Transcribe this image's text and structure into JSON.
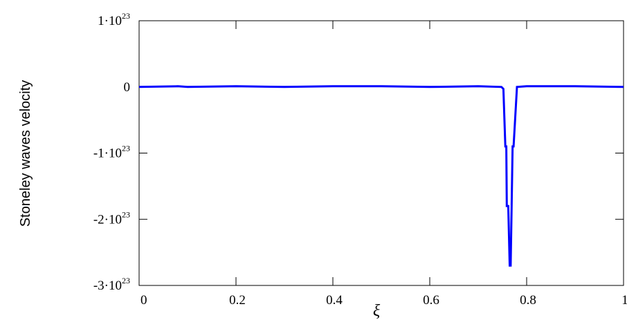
{
  "chart_data": {
    "type": "line",
    "title": "",
    "xlabel": "ξ",
    "ylabel": "Stoneley waves  velocity",
    "xlim": [
      0,
      1
    ],
    "ylim": [
      -3e+23,
      1e+23
    ],
    "grid": false,
    "line_color": "#0000ff",
    "x_ticks": [
      {
        "value": 0,
        "label": "0"
      },
      {
        "value": 0.2,
        "label": "0.2"
      },
      {
        "value": 0.4,
        "label": "0.4"
      },
      {
        "value": 0.6,
        "label": "0.6"
      },
      {
        "value": 0.8,
        "label": "0.8"
      },
      {
        "value": 1,
        "label": "1"
      }
    ],
    "y_ticks": [
      {
        "value": 1e+23,
        "mantissa": "1",
        "exponent": "23"
      },
      {
        "value": 0,
        "mantissa": "0",
        "exponent": ""
      },
      {
        "value": -1e+23,
        "mantissa": "-1",
        "exponent": "23"
      },
      {
        "value": -2e+23,
        "mantissa": "-2",
        "exponent": "23"
      },
      {
        "value": -3e+23,
        "mantissa": "-3",
        "exponent": "23"
      }
    ],
    "series": [
      {
        "x": [
          0,
          0.08,
          0.1,
          0.2,
          0.3,
          0.4,
          0.5,
          0.6,
          0.7,
          0.748,
          0.752,
          0.756,
          0.758,
          0.759,
          0.762,
          0.765,
          0.767,
          0.769,
          0.771,
          0.773,
          0.78,
          0.8,
          0.9,
          1
        ],
        "y": [
          0,
          1e+21,
          0,
          1e+21,
          0,
          1e+21,
          1e+21,
          0,
          1e+21,
          0,
          -3e+21,
          -9e+22,
          -9e+22,
          -1.8e+23,
          -1.8e+23,
          -2.7e+23,
          -2.7e+23,
          -1.8e+23,
          -9e+22,
          -9e+22,
          0,
          1e+21,
          1e+21,
          0
        ]
      }
    ]
  }
}
